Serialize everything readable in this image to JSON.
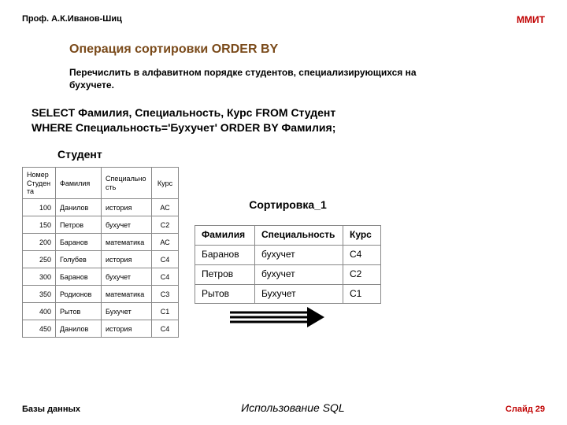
{
  "header": {
    "prof": "Проф. А.К.Иванов-Шиц",
    "logo": "ММИТ"
  },
  "title": "Операция сортировки ORDER BY",
  "subtitle_l1": "Перечислить в алфавитном порядке студентов, специализирующихся на",
  "subtitle_l2": "бухучете.",
  "sql_l1": "SELECT Фамилия, Специальность, Курс FROM Студент",
  "sql_l2": "WHERE Специальность='Бухучет' ORDER BY   Фамилия;",
  "left_table": {
    "caption": "Студент",
    "columns": [
      "Номер Студен та",
      "Фамилия",
      "Специально сть",
      "Курс"
    ],
    "rows": [
      [
        "100",
        "Данилов",
        "история",
        "АС"
      ],
      [
        "150",
        "Петров",
        "бухучет",
        "С2"
      ],
      [
        "200",
        "Баранов",
        "математика",
        "АС"
      ],
      [
        "250",
        "Голубев",
        "история",
        "С4"
      ],
      [
        "300",
        "Баранов",
        "бухучет",
        "С4"
      ],
      [
        "350",
        "Родионов",
        "математика",
        "С3"
      ],
      [
        "400",
        "Рытов",
        "Бухучет",
        "С1"
      ],
      [
        "450",
        "Данилов",
        "история",
        "С4"
      ]
    ]
  },
  "right_table": {
    "caption": "Сортировка_1",
    "columns": [
      "Фамилия",
      "Специальность",
      "Курс"
    ],
    "rows": [
      [
        "Баранов",
        "бухучет",
        "С4"
      ],
      [
        "Петров",
        "бухучет",
        "С2"
      ],
      [
        "Рытов",
        "Бухучет",
        "С1"
      ]
    ]
  },
  "arrow": {
    "shaft_color": "#000000",
    "head_color": "#000000",
    "width": 120,
    "height": 26
  },
  "footer": {
    "left": "Базы данных",
    "mid": "Использование SQL",
    "right": "Слайд 29"
  }
}
